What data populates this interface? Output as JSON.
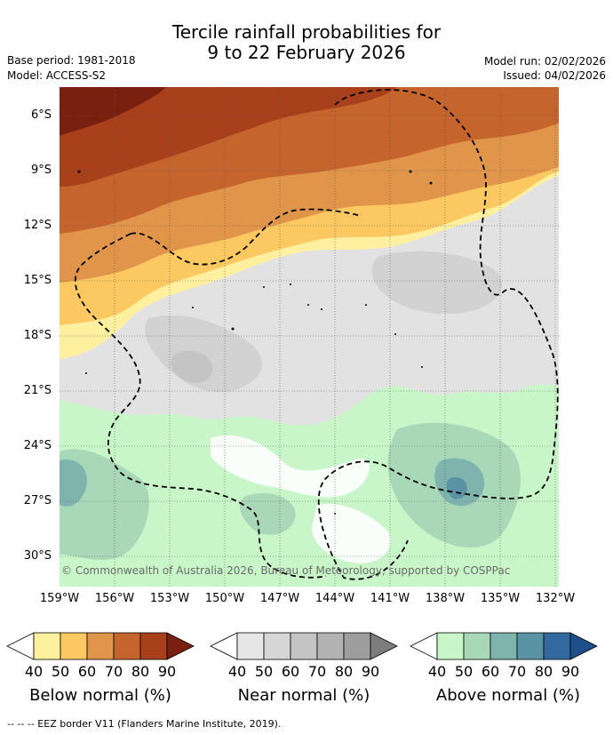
{
  "title": {
    "line1": "Tercile rainfall probabilities for",
    "line2": "9 to 22 February 2026"
  },
  "meta": {
    "base_period": "Base period: 1981-2018",
    "model": "Model: ACCESS-S2",
    "model_run": "Model run: 02/02/2026",
    "issued": "Issued: 04/02/2026"
  },
  "map": {
    "latitudes": [
      "6°S",
      "9°S",
      "12°S",
      "15°S",
      "18°S",
      "21°S",
      "24°S",
      "27°S",
      "30°S"
    ],
    "longitudes": [
      "159°W",
      "156°W",
      "153°W",
      "150°W",
      "147°W",
      "144°W",
      "141°W",
      "138°W",
      "135°W",
      "132°W"
    ],
    "copyright": "© Commonwealth of Australia 2026, Bureau of Meteorology, supported by COSPPac",
    "colors": {
      "below": [
        "#fff0a0",
        "#fbc862",
        "#e0954a",
        "#c6642e",
        "#a8401c",
        "#7a2010"
      ],
      "near": [
        "#e6e6e6",
        "#d6d6d6",
        "#c4c4c4",
        "#b3b3b3",
        "#9e9e9e",
        "#7d7d7d"
      ],
      "above": [
        "#c8f6c8",
        "#a8d8b8",
        "#7fb4ae",
        "#5a93a3",
        "#326aa0",
        "#1e4f8a"
      ]
    }
  },
  "colorbars": [
    {
      "label": "Below normal (%)",
      "ticks": [
        "40",
        "50",
        "60",
        "70",
        "80",
        "90"
      ]
    },
    {
      "label": "Near normal (%)",
      "ticks": [
        "40",
        "50",
        "60",
        "70",
        "80",
        "90"
      ]
    },
    {
      "label": "Above normal (%)",
      "ticks": [
        "40",
        "50",
        "60",
        "70",
        "80",
        "90"
      ]
    }
  ],
  "footnote": "--  --  -- EEZ border V11 (Flanders Marine Institute, 2019)."
}
